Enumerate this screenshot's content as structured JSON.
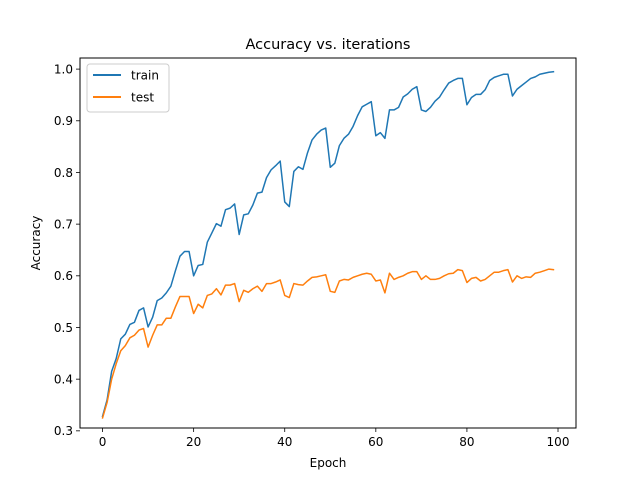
{
  "chart_data": {
    "type": "line",
    "title": "Accuracy vs. iterations",
    "xlabel": "Epoch",
    "ylabel": "Accuracy",
    "xlim": [
      -4.95,
      103.95
    ],
    "ylim": [
      0.3055,
      1.0215
    ],
    "xticks": [
      0,
      20,
      40,
      60,
      80,
      100
    ],
    "yticks": [
      0.3,
      0.4,
      0.5,
      0.6,
      0.7,
      0.8,
      0.9,
      1.0
    ],
    "xtick_labels": [
      "0",
      "20",
      "40",
      "60",
      "80",
      "100"
    ],
    "ytick_labels": [
      "0.3",
      "0.4",
      "0.5",
      "0.6",
      "0.7",
      "0.8",
      "0.9",
      "1.0"
    ],
    "grid": false,
    "legend_position": "upper-left",
    "series": [
      {
        "name": "train",
        "color": "#1f77b4",
        "x": [
          0,
          1,
          2,
          3,
          4,
          5,
          6,
          7,
          8,
          9,
          10,
          11,
          12,
          13,
          14,
          15,
          16,
          17,
          18,
          19,
          20,
          21,
          22,
          23,
          24,
          25,
          26,
          27,
          28,
          29,
          30,
          31,
          32,
          33,
          34,
          35,
          36,
          37,
          38,
          39,
          40,
          41,
          42,
          43,
          44,
          45,
          46,
          47,
          48,
          49,
          50,
          51,
          52,
          53,
          54,
          55,
          56,
          57,
          58,
          59,
          60,
          61,
          62,
          63,
          64,
          65,
          66,
          67,
          68,
          69,
          70,
          71,
          72,
          73,
          74,
          75,
          76,
          77,
          78,
          79,
          80,
          81,
          82,
          83,
          84,
          85,
          86,
          87,
          88,
          89,
          90,
          91,
          92,
          93,
          94,
          95,
          96,
          97,
          98,
          99
        ],
        "y": [
          0.328,
          0.36,
          0.415,
          0.44,
          0.478,
          0.487,
          0.506,
          0.51,
          0.533,
          0.538,
          0.501,
          0.52,
          0.552,
          0.557,
          0.567,
          0.58,
          0.61,
          0.638,
          0.647,
          0.647,
          0.6,
          0.62,
          0.622,
          0.665,
          0.683,
          0.701,
          0.696,
          0.728,
          0.731,
          0.739,
          0.68,
          0.718,
          0.72,
          0.737,
          0.76,
          0.762,
          0.79,
          0.805,
          0.813,
          0.822,
          0.743,
          0.734,
          0.802,
          0.811,
          0.806,
          0.838,
          0.863,
          0.874,
          0.882,
          0.886,
          0.81,
          0.818,
          0.852,
          0.866,
          0.874,
          0.889,
          0.91,
          0.927,
          0.932,
          0.937,
          0.871,
          0.877,
          0.866,
          0.921,
          0.921,
          0.926,
          0.946,
          0.952,
          0.961,
          0.966,
          0.921,
          0.918,
          0.926,
          0.938,
          0.946,
          0.96,
          0.973,
          0.978,
          0.982,
          0.982,
          0.931,
          0.945,
          0.951,
          0.951,
          0.96,
          0.978,
          0.984,
          0.987,
          0.99,
          0.99,
          0.948,
          0.961,
          0.968,
          0.975,
          0.982,
          0.985,
          0.99,
          0.992,
          0.994,
          0.995
        ]
      },
      {
        "name": "test",
        "color": "#ff7f0e",
        "x": [
          0,
          1,
          2,
          3,
          4,
          5,
          6,
          7,
          8,
          9,
          10,
          11,
          12,
          13,
          14,
          15,
          16,
          17,
          18,
          19,
          20,
          21,
          22,
          23,
          24,
          25,
          26,
          27,
          28,
          29,
          30,
          31,
          32,
          33,
          34,
          35,
          36,
          37,
          38,
          39,
          40,
          41,
          42,
          43,
          44,
          45,
          46,
          47,
          48,
          49,
          50,
          51,
          52,
          53,
          54,
          55,
          56,
          57,
          58,
          59,
          60,
          61,
          62,
          63,
          64,
          65,
          66,
          67,
          68,
          69,
          70,
          71,
          72,
          73,
          74,
          75,
          76,
          77,
          78,
          79,
          80,
          81,
          82,
          83,
          84,
          85,
          86,
          87,
          88,
          89,
          90,
          91,
          92,
          93,
          94,
          95,
          96,
          97,
          98,
          99
        ],
        "y": [
          0.325,
          0.355,
          0.4,
          0.43,
          0.455,
          0.465,
          0.48,
          0.485,
          0.495,
          0.498,
          0.462,
          0.485,
          0.505,
          0.505,
          0.518,
          0.518,
          0.54,
          0.56,
          0.56,
          0.56,
          0.527,
          0.545,
          0.538,
          0.562,
          0.565,
          0.575,
          0.563,
          0.582,
          0.582,
          0.585,
          0.55,
          0.572,
          0.568,
          0.575,
          0.58,
          0.57,
          0.585,
          0.585,
          0.588,
          0.592,
          0.562,
          0.558,
          0.585,
          0.583,
          0.582,
          0.59,
          0.597,
          0.598,
          0.6,
          0.602,
          0.57,
          0.568,
          0.59,
          0.593,
          0.592,
          0.597,
          0.6,
          0.603,
          0.605,
          0.603,
          0.59,
          0.592,
          0.567,
          0.605,
          0.593,
          0.597,
          0.6,
          0.605,
          0.608,
          0.608,
          0.593,
          0.6,
          0.593,
          0.593,
          0.595,
          0.6,
          0.604,
          0.605,
          0.612,
          0.61,
          0.587,
          0.595,
          0.597,
          0.59,
          0.593,
          0.6,
          0.607,
          0.607,
          0.61,
          0.612,
          0.588,
          0.6,
          0.595,
          0.598,
          0.597,
          0.605,
          0.607,
          0.61,
          0.613,
          0.612
        ]
      }
    ]
  }
}
